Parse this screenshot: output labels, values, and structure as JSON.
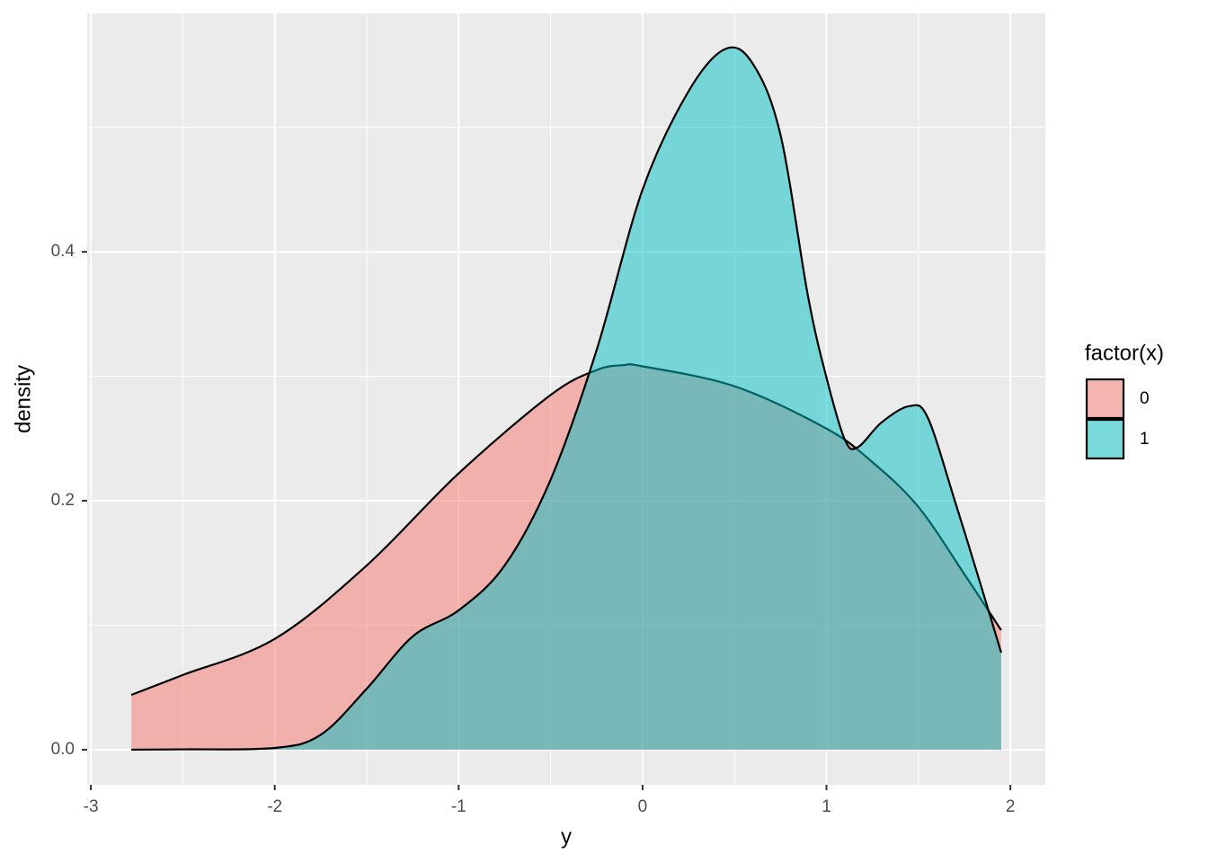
{
  "chart_data": {
    "type": "density",
    "x_label": "y",
    "y_label": "density",
    "legend_title": "factor(x)",
    "legend_position": "right",
    "grid": true,
    "xlim": [
      -3.02,
      2.19
    ],
    "ylim": [
      -0.0282,
      0.5915
    ],
    "xticks": [
      -3,
      -2,
      -1,
      0,
      1,
      2
    ],
    "yticks": [
      {
        "value": 0,
        "label": "0.0"
      },
      {
        "value": 0.2,
        "label": "0.2"
      },
      {
        "value": 0.4,
        "label": "0.4"
      }
    ],
    "x_minor_grid": [
      -2.5,
      -1.5,
      -0.5,
      0.5,
      1.5
    ],
    "y_minor_grid": [
      0.1,
      0.3,
      0.5
    ],
    "series": [
      {
        "name": "0",
        "color": "#F8766D",
        "x": [
          -2.78,
          -2.5,
          -2,
          -1.5,
          -1,
          -0.5,
          -0.25,
          -0.1,
          0,
          0.5,
          1,
          1.25,
          1.5,
          1.75,
          1.95
        ],
        "values": [
          0.044,
          0.06,
          0.089,
          0.148,
          0.222,
          0.285,
          0.305,
          0.309,
          0.308,
          0.292,
          0.258,
          0.231,
          0.195,
          0.141,
          0.096
        ]
      },
      {
        "name": "1",
        "color": "#00BFC4",
        "x": [
          -2.78,
          -2.5,
          -2,
          -1.75,
          -1.5,
          -1.25,
          -1,
          -0.75,
          -0.5,
          -0.25,
          0,
          0.25,
          0.45,
          0.6,
          0.75,
          0.9,
          1.0,
          1.1,
          1.17,
          1.3,
          1.45,
          1.55,
          1.7,
          1.85,
          1.95
        ],
        "values": [
          0,
          0.0003,
          0.0014,
          0.012,
          0.049,
          0.091,
          0.112,
          0.148,
          0.217,
          0.321,
          0.45,
          0.529,
          0.563,
          0.551,
          0.494,
          0.364,
          0.299,
          0.249,
          0.243,
          0.263,
          0.276,
          0.267,
          0.199,
          0.127,
          0.078
        ]
      }
    ]
  }
}
